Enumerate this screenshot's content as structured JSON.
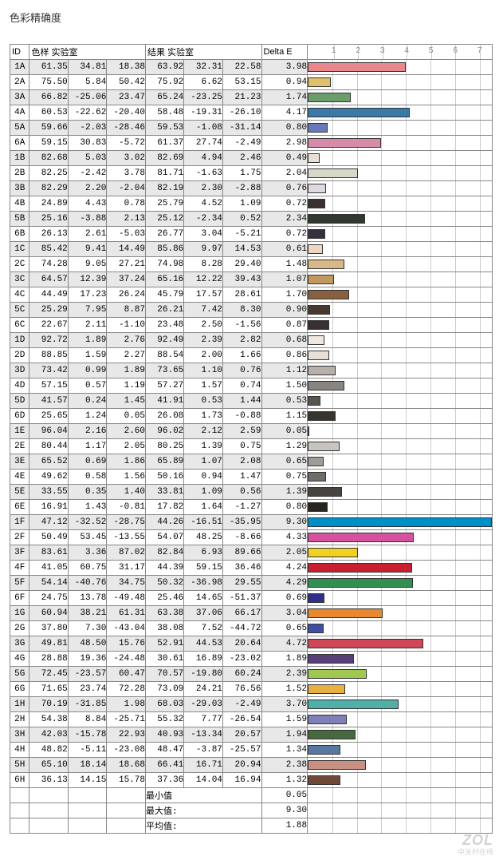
{
  "title": "色彩精确度",
  "headers": {
    "id": "ID",
    "sample": "色样 实验室",
    "result": "结果 实验室",
    "delta": "Delta E"
  },
  "axis": {
    "min": 0,
    "max": 7.5,
    "ticks": [
      1,
      2,
      3,
      4,
      5,
      6,
      7
    ]
  },
  "summary": {
    "min_label": "最小值",
    "min_value": "0.05",
    "max_label": "最大值:",
    "max_value": "9.30",
    "avg_label": "平均值:",
    "avg_value": "1.88"
  },
  "watermark": "ZOL",
  "watermark_sub": "中关村在线",
  "rows": [
    {
      "id": "1A",
      "s1": "61.35",
      "s2": "34.81",
      "s3": "18.38",
      "r1": "63.92",
      "r2": "32.31",
      "r3": "22.58",
      "de": "3.98",
      "bar": 3.98,
      "c": "#e8878d"
    },
    {
      "id": "2A",
      "s1": "75.50",
      "s2": "5.84",
      "s3": "50.42",
      "r1": "75.92",
      "r2": "6.62",
      "r3": "53.15",
      "de": "0.94",
      "bar": 0.94,
      "c": "#e0c06a"
    },
    {
      "id": "3A",
      "s1": "66.82",
      "s2": "-25.06",
      "s3": "23.47",
      "r1": "65.24",
      "r2": "-23.25",
      "r3": "21.23",
      "de": "1.74",
      "bar": 1.74,
      "c": "#6a9d6a"
    },
    {
      "id": "4A",
      "s1": "60.53",
      "s2": "-22.62",
      "s3": "-20.40",
      "r1": "58.48",
      "r2": "-19.31",
      "r3": "-26.10",
      "de": "4.17",
      "bar": 4.17,
      "c": "#3a7aa8"
    },
    {
      "id": "5A",
      "s1": "59.66",
      "s2": "-2.03",
      "s3": "-28.46",
      "r1": "59.53",
      "r2": "-1.08",
      "r3": "-31.14",
      "de": "0.80",
      "bar": 0.8,
      "c": "#6a7ab8"
    },
    {
      "id": "6A",
      "s1": "59.15",
      "s2": "30.83",
      "s3": "-5.72",
      "r1": "61.37",
      "r2": "27.74",
      "r3": "-2.49",
      "de": "2.98",
      "bar": 2.98,
      "c": "#d88aa8"
    },
    {
      "id": "1B",
      "s1": "82.68",
      "s2": "5.03",
      "s3": "3.02",
      "r1": "82.69",
      "r2": "4.94",
      "r3": "2.46",
      "de": "0.49",
      "bar": 0.49,
      "c": "#e8e0d8"
    },
    {
      "id": "2B",
      "s1": "82.25",
      "s2": "-2.42",
      "s3": "3.78",
      "r1": "81.71",
      "r2": "-1.63",
      "r3": "1.75",
      "de": "2.04",
      "bar": 2.04,
      "c": "#d8d8c8"
    },
    {
      "id": "3B",
      "s1": "82.29",
      "s2": "2.20",
      "s3": "-2.04",
      "r1": "82.19",
      "r2": "2.30",
      "r3": "-2.88",
      "de": "0.76",
      "bar": 0.76,
      "c": "#e0d8e0"
    },
    {
      "id": "4B",
      "s1": "24.89",
      "s2": "4.43",
      "s3": "0.78",
      "r1": "25.79",
      "r2": "4.52",
      "r3": "1.09",
      "de": "0.72",
      "bar": 0.72,
      "c": "#3a3030"
    },
    {
      "id": "5B",
      "s1": "25.16",
      "s2": "-3.88",
      "s3": "2.13",
      "r1": "25.12",
      "r2": "-2.34",
      "r3": "0.52",
      "de": "2.34",
      "bar": 2.34,
      "c": "#303830"
    },
    {
      "id": "6B",
      "s1": "26.13",
      "s2": "2.61",
      "s3": "-5.03",
      "r1": "26.77",
      "r2": "3.04",
      "r3": "-5.21",
      "de": "0.72",
      "bar": 0.72,
      "c": "#383040"
    },
    {
      "id": "1C",
      "s1": "85.42",
      "s2": "9.41",
      "s3": "14.49",
      "r1": "85.86",
      "r2": "9.97",
      "r3": "14.53",
      "de": "0.61",
      "bar": 0.61,
      "c": "#f0d8c0"
    },
    {
      "id": "2C",
      "s1": "74.28",
      "s2": "9.05",
      "s3": "27.21",
      "r1": "74.98",
      "r2": "8.28",
      "r3": "29.40",
      "de": "1.48",
      "bar": 1.48,
      "c": "#d8b888"
    },
    {
      "id": "3C",
      "s1": "64.57",
      "s2": "12.39",
      "s3": "37.24",
      "r1": "65.16",
      "r2": "12.22",
      "r3": "39.43",
      "de": "1.07",
      "bar": 1.07,
      "c": "#c09860"
    },
    {
      "id": "4C",
      "s1": "44.49",
      "s2": "17.23",
      "s3": "26.24",
      "r1": "45.79",
      "r2": "17.57",
      "r3": "28.61",
      "de": "1.70",
      "bar": 1.7,
      "c": "#886040"
    },
    {
      "id": "5C",
      "s1": "25.29",
      "s2": "7.95",
      "s3": "8.87",
      "r1": "26.21",
      "r2": "7.42",
      "r3": "8.30",
      "de": "0.90",
      "bar": 0.9,
      "c": "#483830"
    },
    {
      "id": "6C",
      "s1": "22.67",
      "s2": "2.11",
      "s3": "-1.10",
      "r1": "23.48",
      "r2": "2.50",
      "r3": "-1.56",
      "de": "0.87",
      "bar": 0.87,
      "c": "#383030"
    },
    {
      "id": "1D",
      "s1": "92.72",
      "s2": "1.89",
      "s3": "2.76",
      "r1": "92.49",
      "r2": "2.39",
      "r3": "2.82",
      "de": "0.68",
      "bar": 0.68,
      "c": "#f0e8e0"
    },
    {
      "id": "2D",
      "s1": "88.85",
      "s2": "1.59",
      "s3": "2.27",
      "r1": "88.54",
      "r2": "2.00",
      "r3": "1.66",
      "de": "0.86",
      "bar": 0.86,
      "c": "#e8e0d8"
    },
    {
      "id": "3D",
      "s1": "73.42",
      "s2": "0.99",
      "s3": "1.89",
      "r1": "73.65",
      "r2": "1.10",
      "r3": "0.76",
      "de": "1.12",
      "bar": 1.12,
      "c": "#b8b0a8"
    },
    {
      "id": "4D",
      "s1": "57.15",
      "s2": "0.57",
      "s3": "1.19",
      "r1": "57.27",
      "r2": "1.57",
      "r3": "0.74",
      "de": "1.50",
      "bar": 1.5,
      "c": "#888480"
    },
    {
      "id": "5D",
      "s1": "41.57",
      "s2": "0.24",
      "s3": "1.45",
      "r1": "41.91",
      "r2": "0.53",
      "r3": "1.44",
      "de": "0.53",
      "bar": 0.53,
      "c": "#585450"
    },
    {
      "id": "6D",
      "s1": "25.65",
      "s2": "1.24",
      "s3": "0.05",
      "r1": "26.08",
      "r2": "1.73",
      "r3": "-0.88",
      "de": "1.15",
      "bar": 1.15,
      "c": "#383430"
    },
    {
      "id": "1E",
      "s1": "96.04",
      "s2": "2.16",
      "s3": "2.60",
      "r1": "96.02",
      "r2": "2.12",
      "r3": "2.59",
      "de": "0.05",
      "bar": 0.05,
      "c": "#f8f4f0"
    },
    {
      "id": "2E",
      "s1": "80.44",
      "s2": "1.17",
      "s3": "2.05",
      "r1": "80.25",
      "r2": "1.39",
      "r3": "0.75",
      "de": "1.29",
      "bar": 1.29,
      "c": "#c8c4c0"
    },
    {
      "id": "3E",
      "s1": "65.52",
      "s2": "0.69",
      "s3": "1.86",
      "r1": "65.89",
      "r2": "1.07",
      "r3": "2.08",
      "de": "0.65",
      "bar": 0.65,
      "c": "#a09c98"
    },
    {
      "id": "4E",
      "s1": "49.62",
      "s2": "0.58",
      "s3": "1.56",
      "r1": "50.16",
      "r2": "0.94",
      "r3": "1.47",
      "de": "0.75",
      "bar": 0.75,
      "c": "#706c68"
    },
    {
      "id": "5E",
      "s1": "33.55",
      "s2": "0.35",
      "s3": "1.40",
      "r1": "33.81",
      "r2": "1.09",
      "r3": "0.56",
      "de": "1.39",
      "bar": 1.39,
      "c": "#484440"
    },
    {
      "id": "6E",
      "s1": "16.91",
      "s2": "1.43",
      "s3": "-0.81",
      "r1": "17.82",
      "r2": "1.64",
      "r3": "-1.27",
      "de": "0.80",
      "bar": 0.8,
      "c": "#282420"
    },
    {
      "id": "1F",
      "s1": "47.12",
      "s2": "-32.52",
      "s3": "-28.75",
      "r1": "44.26",
      "r2": "-16.51",
      "r3": "-35.95",
      "de": "9.30",
      "bar": 9.3,
      "c": "#0090c8"
    },
    {
      "id": "2F",
      "s1": "50.49",
      "s2": "53.45",
      "s3": "-13.55",
      "r1": "54.07",
      "r2": "48.25",
      "r3": "-8.66",
      "de": "4.33",
      "bar": 4.33,
      "c": "#d850a0"
    },
    {
      "id": "3F",
      "s1": "83.61",
      "s2": "3.36",
      "s3": "87.02",
      "r1": "82.84",
      "r2": "6.93",
      "r3": "89.66",
      "de": "2.05",
      "bar": 2.05,
      "c": "#f0d020"
    },
    {
      "id": "4F",
      "s1": "41.05",
      "s2": "60.75",
      "s3": "31.17",
      "r1": "44.39",
      "r2": "59.15",
      "r3": "36.46",
      "de": "4.24",
      "bar": 4.24,
      "c": "#c82030"
    },
    {
      "id": "5F",
      "s1": "54.14",
      "s2": "-40.76",
      "s3": "34.75",
      "r1": "50.32",
      "r2": "-36.98",
      "r3": "29.55",
      "de": "4.29",
      "bar": 4.29,
      "c": "#309050"
    },
    {
      "id": "6F",
      "s1": "24.75",
      "s2": "13.78",
      "s3": "-49.48",
      "r1": "25.46",
      "r2": "14.65",
      "r3": "-51.37",
      "de": "0.69",
      "bar": 0.69,
      "c": "#303088"
    },
    {
      "id": "1G",
      "s1": "60.94",
      "s2": "38.21",
      "s3": "61.31",
      "r1": "63.38",
      "r2": "37.06",
      "r3": "66.17",
      "de": "3.04",
      "bar": 3.04,
      "c": "#e88830"
    },
    {
      "id": "2G",
      "s1": "37.80",
      "s2": "7.30",
      "s3": "-43.04",
      "r1": "38.08",
      "r2": "7.52",
      "r3": "-44.72",
      "de": "0.65",
      "bar": 0.65,
      "c": "#4050a0"
    },
    {
      "id": "3G",
      "s1": "49.81",
      "s2": "48.50",
      "s3": "15.76",
      "r1": "52.91",
      "r2": "44.53",
      "r3": "20.64",
      "de": "4.72",
      "bar": 4.72,
      "c": "#d04858"
    },
    {
      "id": "4G",
      "s1": "28.88",
      "s2": "19.36",
      "s3": "-24.48",
      "r1": "30.61",
      "r2": "16.89",
      "r3": "-23.02",
      "de": "1.89",
      "bar": 1.89,
      "c": "#584078"
    },
    {
      "id": "5G",
      "s1": "72.45",
      "s2": "-23.57",
      "s3": "60.47",
      "r1": "70.57",
      "r2": "-19.80",
      "r3": "60.24",
      "de": "2.39",
      "bar": 2.39,
      "c": "#a0c850"
    },
    {
      "id": "6G",
      "s1": "71.65",
      "s2": "23.74",
      "s3": "72.28",
      "r1": "73.09",
      "r2": "24.21",
      "r3": "76.56",
      "de": "1.52",
      "bar": 1.52,
      "c": "#e8b040"
    },
    {
      "id": "1H",
      "s1": "70.19",
      "s2": "-31.85",
      "s3": "1.98",
      "r1": "68.03",
      "r2": "-29.03",
      "r3": "-2.49",
      "de": "3.70",
      "bar": 3.7,
      "c": "#50b0a8"
    },
    {
      "id": "2H",
      "s1": "54.38",
      "s2": "8.84",
      "s3": "-25.71",
      "r1": "55.32",
      "r2": "7.77",
      "r3": "-26.54",
      "de": "1.59",
      "bar": 1.59,
      "c": "#8080b8"
    },
    {
      "id": "3H",
      "s1": "42.03",
      "s2": "-15.78",
      "s3": "22.93",
      "r1": "40.93",
      "r2": "-13.34",
      "r3": "20.57",
      "de": "1.94",
      "bar": 1.94,
      "c": "#486840"
    },
    {
      "id": "4H",
      "s1": "48.82",
      "s2": "-5.11",
      "s3": "-23.08",
      "r1": "48.47",
      "r2": "-3.87",
      "r3": "-25.57",
      "de": "1.34",
      "bar": 1.34,
      "c": "#5878a0"
    },
    {
      "id": "5H",
      "s1": "65.10",
      "s2": "18.14",
      "s3": "18.68",
      "r1": "66.41",
      "r2": "16.71",
      "r3": "20.94",
      "de": "2.38",
      "bar": 2.38,
      "c": "#c89080"
    },
    {
      "id": "6H",
      "s1": "36.13",
      "s2": "14.15",
      "s3": "15.78",
      "r1": "37.36",
      "r2": "14.04",
      "r3": "16.94",
      "de": "1.32",
      "bar": 1.32,
      "c": "#704838"
    }
  ]
}
